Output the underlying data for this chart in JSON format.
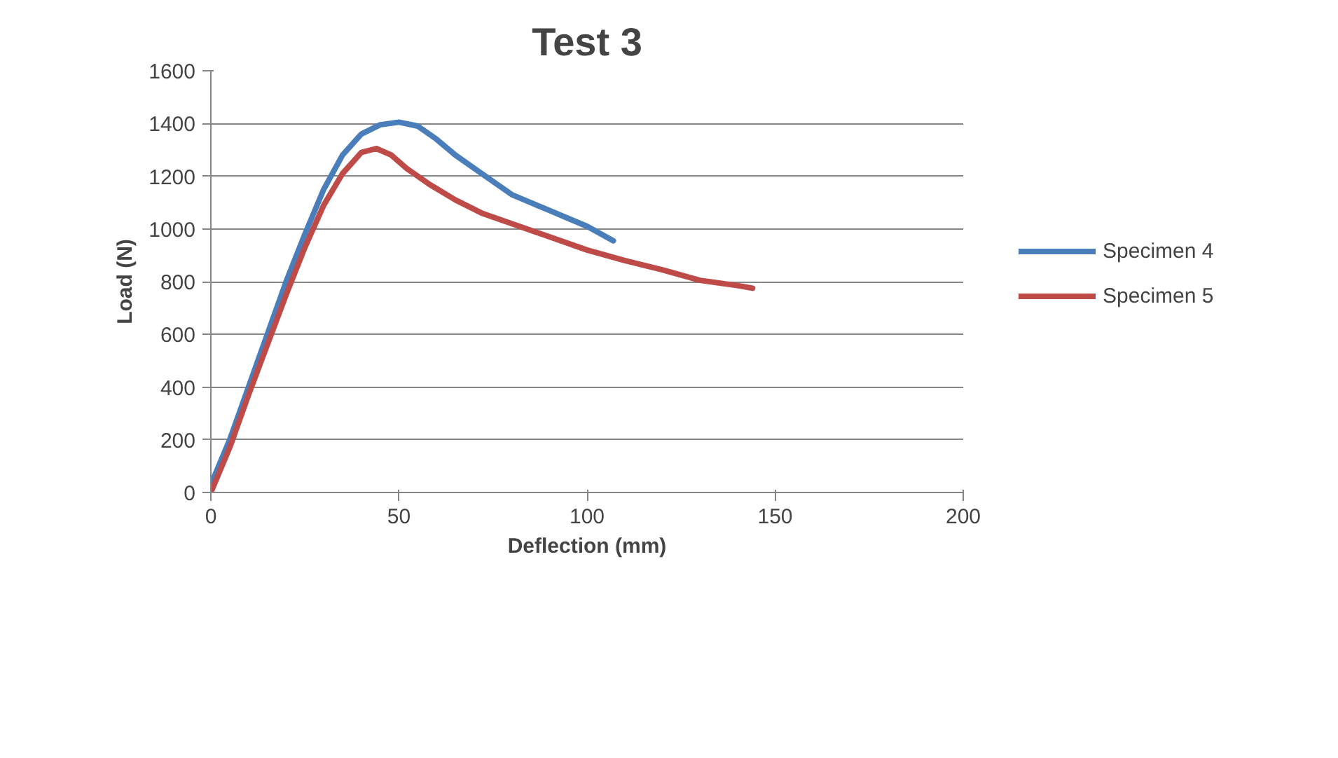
{
  "chart_data": {
    "type": "line",
    "title": "Test 3",
    "xlabel": "Deflection (mm)",
    "ylabel": "Load (N)",
    "xlim": [
      0,
      200
    ],
    "xticks": [
      0,
      50,
      100,
      150,
      200
    ],
    "ylim": [
      0,
      1600
    ],
    "yticks": [
      0,
      200,
      400,
      600,
      800,
      1000,
      1200,
      1400,
      1600
    ],
    "grid": "y",
    "legend": "right",
    "marker": "none",
    "line_style": "solid",
    "series": [
      {
        "name": "Specimen 4",
        "color": "#4a7ebb",
        "x": [
          0,
          5,
          10,
          15,
          20,
          25,
          30,
          35,
          40,
          45,
          50,
          55,
          60,
          65,
          70,
          75,
          80,
          85,
          90,
          95,
          100,
          107
        ],
        "values": [
          30,
          200,
          400,
          600,
          800,
          980,
          1150,
          1280,
          1360,
          1395,
          1405,
          1390,
          1340,
          1280,
          1230,
          1180,
          1130,
          1100,
          1070,
          1040,
          1010,
          955
        ]
      },
      {
        "name": "Specimen 5",
        "color": "#be4b48",
        "x": [
          0,
          5,
          10,
          15,
          20,
          25,
          30,
          35,
          40,
          44,
          48,
          52,
          58,
          65,
          72,
          80,
          90,
          100,
          110,
          120,
          130,
          140,
          144
        ],
        "values": [
          0,
          170,
          370,
          560,
          750,
          930,
          1090,
          1210,
          1290,
          1305,
          1280,
          1230,
          1170,
          1110,
          1060,
          1020,
          970,
          920,
          880,
          845,
          805,
          785,
          775
        ]
      }
    ]
  }
}
